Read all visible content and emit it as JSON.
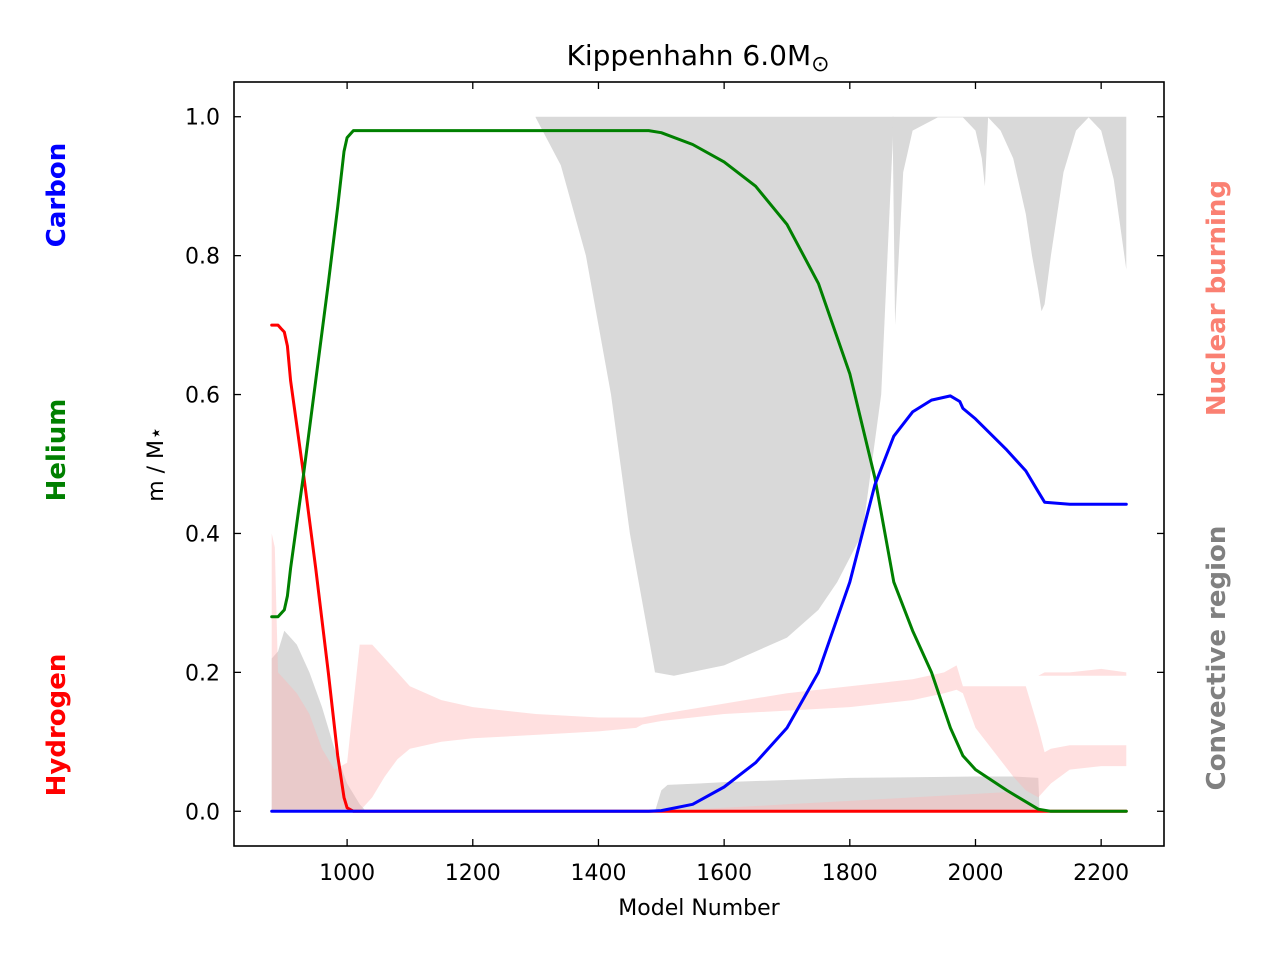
{
  "chart_data": {
    "type": "area",
    "title": "Kippenhahn 6.0M",
    "title_symbol": "⊙",
    "xlabel": "Model Number",
    "ylabel": "m / M⋆",
    "xlim": [
      820,
      2300
    ],
    "ylim": [
      -0.05,
      1.05
    ],
    "xticks": [
      1000,
      1200,
      1400,
      1600,
      1800,
      2000,
      2200
    ],
    "yticks": [
      0.0,
      0.2,
      0.4,
      0.6,
      0.8,
      1.0
    ],
    "grid": false,
    "left_labels": [
      {
        "text": "Carbon",
        "color": "#0000ff"
      },
      {
        "text": "Helium",
        "color": "#008000"
      },
      {
        "text": "Hydrogen",
        "color": "#ff0000"
      }
    ],
    "right_labels": [
      {
        "text": "Nuclear burning",
        "color": "#fa8072"
      },
      {
        "text": "Convective region",
        "color": "#808080"
      }
    ],
    "series": [
      {
        "name": "Hydrogen",
        "color": "#ff0000",
        "x": [
          880,
          890,
          895,
          900,
          905,
          910,
          930,
          950,
          970,
          985,
          995,
          1000,
          1010,
          1050,
          1200,
          1400,
          1600,
          1800,
          2000,
          2100,
          2240
        ],
        "y": [
          0.7,
          0.7,
          0.695,
          0.69,
          0.67,
          0.62,
          0.49,
          0.35,
          0.2,
          0.08,
          0.02,
          0.005,
          0.0,
          0.0,
          0.0,
          0.0,
          0.0,
          0.0,
          0.0,
          0.0,
          0.0
        ]
      },
      {
        "name": "Helium",
        "color": "#008000",
        "x": [
          880,
          890,
          900,
          905,
          910,
          930,
          950,
          970,
          985,
          995,
          1000,
          1010,
          1050,
          1200,
          1400,
          1480,
          1500,
          1550,
          1600,
          1650,
          1700,
          1750,
          1800,
          1840,
          1870,
          1900,
          1930,
          1960,
          1980,
          2000,
          2050,
          2100,
          2120,
          2200,
          2240
        ],
        "y": [
          0.28,
          0.28,
          0.29,
          0.31,
          0.35,
          0.48,
          0.62,
          0.76,
          0.87,
          0.95,
          0.97,
          0.98,
          0.98,
          0.98,
          0.98,
          0.98,
          0.977,
          0.96,
          0.935,
          0.9,
          0.845,
          0.76,
          0.63,
          0.48,
          0.33,
          0.26,
          0.2,
          0.12,
          0.08,
          0.06,
          0.03,
          0.003,
          0.0,
          0.0,
          0.0
        ]
      },
      {
        "name": "Carbon",
        "color": "#0000ff",
        "x": [
          880,
          1000,
          1200,
          1400,
          1480,
          1500,
          1550,
          1600,
          1650,
          1700,
          1750,
          1800,
          1840,
          1870,
          1900,
          1930,
          1960,
          1975,
          1980,
          2000,
          2050,
          2080,
          2100,
          2110,
          2150,
          2240
        ],
        "y": [
          0.0,
          0.0,
          0.0,
          0.0,
          0.0,
          0.001,
          0.01,
          0.035,
          0.07,
          0.12,
          0.2,
          0.33,
          0.47,
          0.54,
          0.575,
          0.592,
          0.598,
          0.59,
          0.58,
          0.565,
          0.52,
          0.49,
          0.46,
          0.445,
          0.442,
          0.442
        ]
      }
    ],
    "regions": [
      {
        "name": "Convective region",
        "color": "#d9d9d9",
        "x": [
          1300,
          1340,
          1380,
          1420,
          1450,
          1480,
          1490,
          1520,
          1600,
          1700,
          1750,
          1780,
          1820,
          1850,
          1870
        ],
        "lower": [
          0.999,
          0.93,
          0.8,
          0.6,
          0.4,
          0.25,
          0.2,
          0.195,
          0.21,
          0.25,
          0.29,
          0.33,
          0.4,
          0.6,
          0.999
        ],
        "upper": [
          1.0,
          1.0,
          1.0,
          1.0,
          1.0,
          1.0,
          1.0,
          1.0,
          1.0,
          1.0,
          1.0,
          1.0,
          1.0,
          1.0,
          1.0
        ]
      },
      {
        "name": "Convective region",
        "color": "#d9d9d9",
        "x": [
          1868,
          1872,
          1885,
          1900,
          1940,
          1980,
          2000,
          2010,
          2015,
          2020,
          2040,
          2060,
          2080,
          2090,
          2100,
          2105,
          2110,
          2120,
          2140,
          2160,
          2180,
          2200,
          2220,
          2240
        ],
        "lower": [
          0.999,
          0.7,
          0.92,
          0.98,
          0.999,
          0.999,
          0.98,
          0.94,
          0.9,
          0.999,
          0.98,
          0.94,
          0.86,
          0.8,
          0.75,
          0.72,
          0.73,
          0.8,
          0.92,
          0.98,
          0.999,
          0.98,
          0.91,
          0.78
        ],
        "upper": [
          1.0,
          1.0,
          1.0,
          1.0,
          1.0,
          1.0,
          1.0,
          1.0,
          1.0,
          1.0,
          1.0,
          1.0,
          1.0,
          1.0,
          1.0,
          1.0,
          1.0,
          1.0,
          1.0,
          1.0,
          1.0,
          1.0,
          1.0,
          1.0
        ]
      },
      {
        "name": "Convective region",
        "color": "#d9d9d9",
        "x": [
          880,
          890,
          900,
          920,
          940,
          960,
          980,
          1000,
          1020,
          1030
        ],
        "lower": [
          0.0,
          0.0,
          0.0,
          0.0,
          0.0,
          0.0,
          0.0,
          0.0,
          0.0,
          0.0
        ],
        "upper": [
          0.22,
          0.23,
          0.26,
          0.24,
          0.2,
          0.15,
          0.09,
          0.04,
          0.01,
          0.0
        ]
      },
      {
        "name": "Convective region",
        "color": "#d9d9d9",
        "x": [
          1490,
          1500,
          1510,
          1560,
          1600,
          1700,
          1800,
          1900,
          2000,
          2060,
          2100,
          2102
        ],
        "lower": [
          0.0,
          0.0,
          0.0,
          0.0,
          0.0,
          0.0,
          0.0,
          0.0,
          0.0,
          0.0,
          0.0,
          0.0
        ],
        "upper": [
          0.0,
          0.03,
          0.038,
          0.04,
          0.042,
          0.045,
          0.048,
          0.049,
          0.05,
          0.05,
          0.048,
          0.0
        ]
      },
      {
        "name": "Nuclear burning",
        "color": "#ffb6b6",
        "opacity": 0.42,
        "x": [
          880,
          885,
          890,
          900,
          920,
          940,
          960,
          980,
          1000,
          1020,
          1040,
          1060,
          1080,
          1100,
          1150,
          1200,
          1300,
          1400,
          1460,
          1470,
          1500,
          1600,
          1700,
          1800,
          1900,
          1950,
          1970,
          1980,
          2000,
          2060,
          2080,
          2100,
          2110,
          2120,
          2150,
          2200,
          2240
        ],
        "lower": [
          0.0,
          0.0,
          0.0,
          0.0,
          0.0,
          0.0,
          0.0,
          0.0,
          0.0,
          0.0,
          0.02,
          0.05,
          0.075,
          0.09,
          0.1,
          0.105,
          0.11,
          0.115,
          0.12,
          0.125,
          0.13,
          0.14,
          0.145,
          0.15,
          0.16,
          0.17,
          0.175,
          0.17,
          0.12,
          0.05,
          0.03,
          0.02,
          0.03,
          0.04,
          0.06,
          0.065,
          0.065
        ],
        "upper": [
          0.4,
          0.38,
          0.2,
          0.19,
          0.17,
          0.14,
          0.09,
          0.06,
          0.07,
          0.24,
          0.24,
          0.22,
          0.2,
          0.18,
          0.16,
          0.15,
          0.14,
          0.135,
          0.135,
          0.135,
          0.14,
          0.155,
          0.17,
          0.18,
          0.19,
          0.2,
          0.21,
          0.18,
          0.18,
          0.18,
          0.18,
          0.12,
          0.085,
          0.09,
          0.095,
          0.095,
          0.095
        ]
      },
      {
        "name": "Nuclear burning",
        "color": "#ffb6b6",
        "opacity": 0.42,
        "x": [
          2100,
          2110,
          2150,
          2200,
          2240
        ],
        "lower": [
          0.195,
          0.195,
          0.195,
          0.195,
          0.195
        ],
        "upper": [
          0.195,
          0.2,
          0.2,
          0.205,
          0.2
        ]
      },
      {
        "name": "Nuclear burning",
        "color": "#ffb6b6",
        "opacity": 0.42,
        "x": [
          1500,
          1600,
          1700,
          1800,
          1900,
          2000,
          2060,
          2100
        ],
        "lower": [
          0.0,
          0.0,
          0.0,
          0.0,
          0.0,
          0.0,
          0.0,
          0.0
        ],
        "upper": [
          0.0,
          0.005,
          0.01,
          0.015,
          0.02,
          0.025,
          0.028,
          0.0
        ]
      }
    ]
  }
}
